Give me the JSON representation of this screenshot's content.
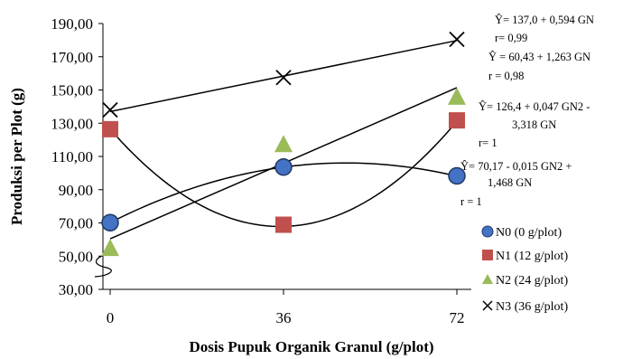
{
  "chart_data": {
    "type": "scatter",
    "xlabel": "Dosis Pupuk Organik Granul (g/plot)",
    "ylabel": "Produksi  per Plot (g)",
    "x": [
      0,
      36,
      72
    ],
    "x_tick_labels": [
      "0",
      "36",
      "72"
    ],
    "ylim": [
      30,
      190
    ],
    "y_tick_labels": [
      "30,00",
      "50,00",
      "70,00",
      "90,00",
      "110,00",
      "130,00",
      "150,00",
      "170,00",
      "190,00"
    ],
    "grid": false,
    "legend_position": "right",
    "series": [
      {
        "name": "N0 (0 g/plot)",
        "marker": "circle",
        "color": "#4472C4",
        "values": [
          70.17,
          103.6,
          98.3
        ],
        "trend": "quadratic",
        "trend_coeffs": [
          70.17,
          1.468,
          -0.015
        ],
        "equation": [
          "Ŷ= 70,17 - 0,015 GN2 +",
          "1,468 GN"
        ],
        "r": "r = 1"
      },
      {
        "name": "N1 (12 g/plot)",
        "marker": "square",
        "color": "#C0504D",
        "values": [
          126.4,
          68.9,
          131.7
        ],
        "trend": "quadratic",
        "trend_coeffs": [
          126.4,
          -3.318,
          0.047
        ],
        "equation": [
          "Ŷ= 126,4 + 0,047 GN2 -",
          "3,318 GN"
        ],
        "r": "r= 1"
      },
      {
        "name": "N2 (24 g/plot)",
        "marker": "triangle",
        "color": "#9BBB59",
        "values": [
          55.0,
          117.5,
          146.0
        ],
        "trend": "linear",
        "trend_coeffs": [
          60.43,
          1.263
        ],
        "equation": [
          "Ŷ = 60,43 + 1,263 GN"
        ],
        "r": "r = 0,98"
      },
      {
        "name": "N3 (36 g/plot)",
        "marker": "x",
        "color": "#000000",
        "values": [
          138.0,
          157.5,
          180.5
        ],
        "trend": "linear",
        "trend_coeffs": [
          137.0,
          0.594
        ],
        "equation": [
          "Ŷ= 137,0 + 0,594 GN"
        ],
        "r": "r= 0,99"
      }
    ]
  }
}
